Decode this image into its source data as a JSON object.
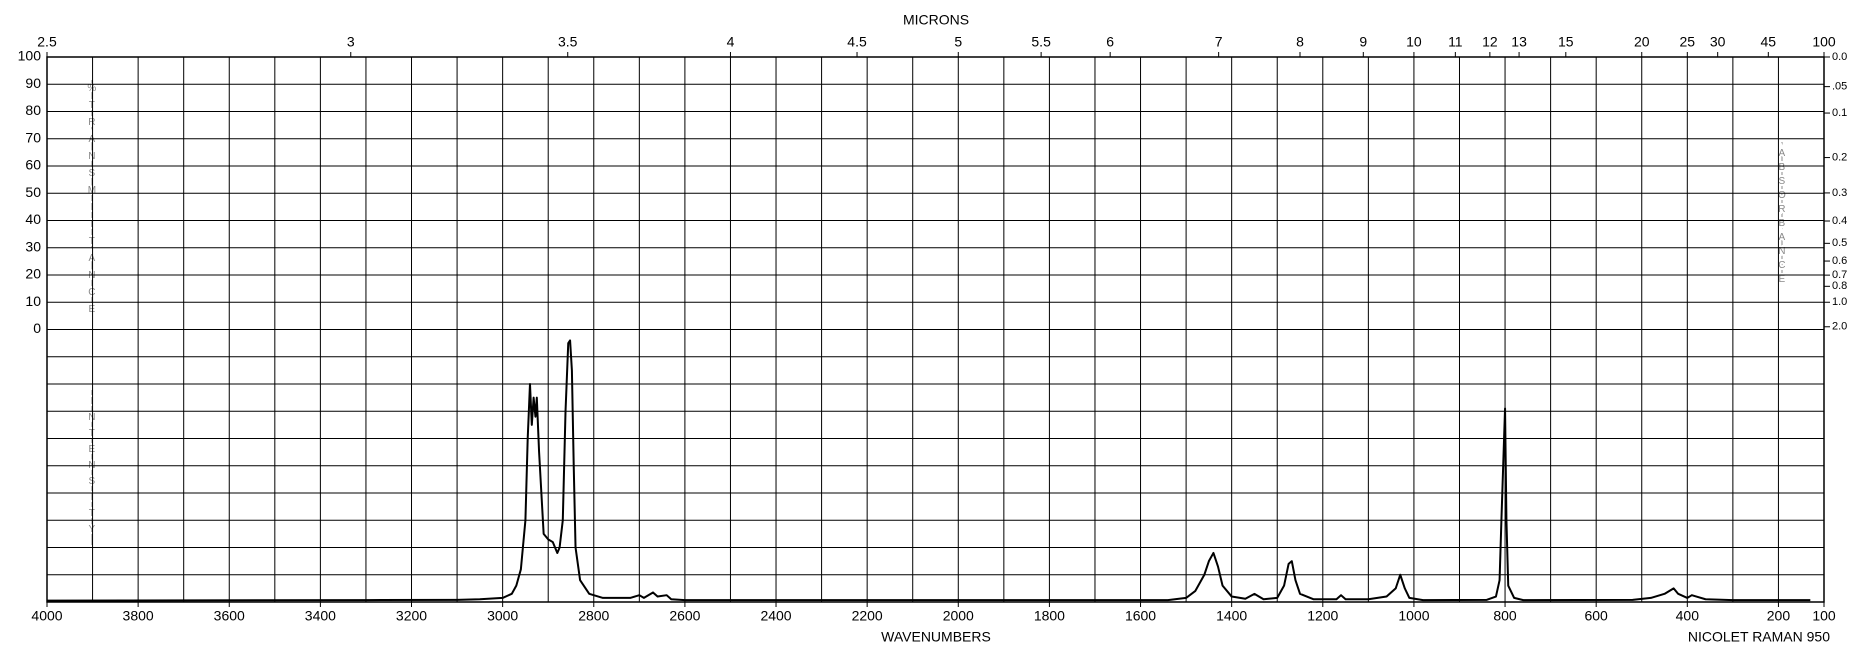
{
  "chart_data": {
    "type": "line",
    "x2_label": "MICRONS",
    "x_label": "WAVENUMBERS",
    "instrument": "NICOLET RAMAN 950",
    "y_label": "%TRANSMITTANCE",
    "intensity_label": "INTENSITY",
    "y2_label": "ABSORBANCE",
    "color": "#000000",
    "grid": true,
    "xlim": [
      4000,
      100
    ],
    "xticks": [
      4000,
      3800,
      3600,
      3400,
      3200,
      3000,
      2800,
      2600,
      2400,
      2200,
      2000,
      1800,
      1600,
      1400,
      1200,
      1000,
      800,
      600,
      400,
      200,
      100
    ],
    "x_minor_grid": [
      3900,
      3700,
      3500,
      3300,
      3100,
      2900,
      2700,
      2500,
      2300,
      2100,
      1900,
      1700,
      1500,
      1300,
      1100,
      900,
      700,
      500,
      300
    ],
    "x2ticks": [
      2.5,
      3,
      3.5,
      4,
      4.5,
      5,
      5.5,
      6,
      7,
      8,
      9,
      10,
      11,
      12,
      13,
      15,
      20,
      25,
      30,
      45,
      100
    ],
    "ylim": [
      -100,
      100
    ],
    "yticks": [
      100,
      90,
      80,
      70,
      60,
      50,
      40,
      30,
      20,
      10,
      0
    ],
    "y_minor_grid": [
      -10,
      -20,
      -30,
      -40,
      -50,
      -60,
      -70,
      -80,
      -90
    ],
    "y2ticks": [
      {
        "value": 0.0,
        "label": "0.0"
      },
      {
        "value": 0.05,
        "label": ".05"
      },
      0.1,
      0.2,
      0.3,
      0.4,
      0.5,
      0.6,
      0.7,
      0.8,
      {
        "value": 1.0,
        "label": "1.0"
      },
      {
        "value": 2.0,
        "label": "2.0"
      }
    ],
    "x": [
      4000,
      3300,
      3100,
      3050,
      3000,
      2980,
      2970,
      2960,
      2950,
      2945,
      2940,
      2936,
      2932,
      2928,
      2925,
      2920,
      2915,
      2910,
      2900,
      2890,
      2880,
      2875,
      2868,
      2862,
      2856,
      2852,
      2848,
      2844,
      2840,
      2830,
      2810,
      2780,
      2720,
      2700,
      2690,
      2670,
      2660,
      2640,
      2630,
      2600,
      1540,
      1500,
      1480,
      1460,
      1450,
      1440,
      1430,
      1420,
      1400,
      1370,
      1350,
      1330,
      1300,
      1285,
      1275,
      1268,
      1260,
      1250,
      1220,
      1170,
      1160,
      1150,
      1100,
      1060,
      1040,
      1030,
      1020,
      1010,
      980,
      840,
      820,
      812,
      808,
      800,
      797,
      793,
      780,
      760,
      520,
      480,
      450,
      430,
      420,
      400,
      390,
      380,
      360,
      300,
      130
    ],
    "values": [
      -99.5,
      -99.3,
      -99.2,
      -99,
      -98.5,
      -97,
      -94,
      -88,
      -70,
      -40,
      -20,
      -35,
      -25,
      -32,
      -25,
      -45,
      -60,
      -75,
      -77,
      -78,
      -82,
      -80,
      -70,
      -30,
      -5,
      -4,
      -15,
      -50,
      -80,
      -92,
      -97,
      -98.5,
      -98.5,
      -97.5,
      -98.5,
      -96.5,
      -98,
      -97.5,
      -99,
      -99.3,
      -99.3,
      -98.5,
      -96,
      -90,
      -85,
      -82,
      -87,
      -94,
      -98,
      -98.8,
      -97,
      -99,
      -98.5,
      -94,
      -86,
      -85,
      -92,
      -97,
      -99,
      -99,
      -97.5,
      -99,
      -99,
      -98,
      -95,
      -90,
      -95,
      -98.5,
      -99.3,
      -99.2,
      -98,
      -92,
      -70,
      -29,
      -70,
      -94,
      -98.5,
      -99.3,
      -99.2,
      -98.5,
      -97,
      -95,
      -97,
      -98.5,
      -97.5,
      -98,
      -99,
      -99.3,
      -99.3
    ]
  }
}
